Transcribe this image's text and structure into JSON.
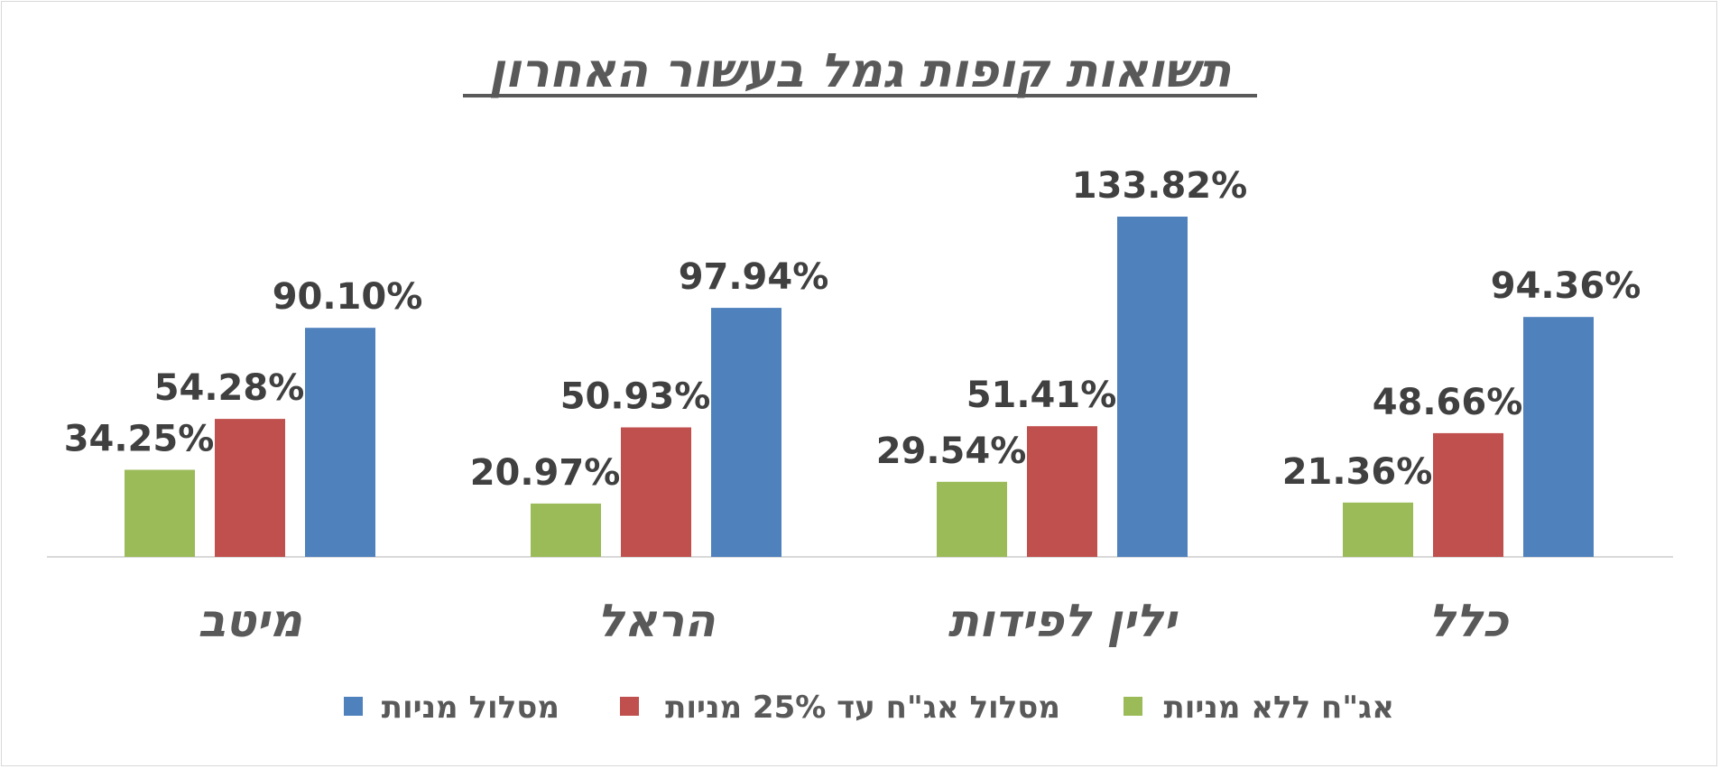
{
  "chart_data": {
    "type": "bar",
    "title": "תשואות קופות גמל בעשור האחרון",
    "categories": [
      "מיטב",
      "הראל",
      "ילין לפידות",
      "כלל"
    ],
    "series": [
      {
        "name": "אג\"ח ללא מניות",
        "color": "#9BBB59",
        "values": [
          34.25,
          20.97,
          29.54,
          21.36
        ],
        "labels": [
          "34.25%",
          "20.97%",
          "29.54%",
          "21.36%"
        ]
      },
      {
        "name": "מסלול אג\"ח עד 25% מניות",
        "color": "#C0504D",
        "values": [
          54.28,
          50.93,
          51.41,
          48.66
        ],
        "labels": [
          "54.28%",
          "50.93%",
          "51.41%",
          "48.66%"
        ]
      },
      {
        "name": "מסלול מניות",
        "color": "#4F81BD",
        "values": [
          90.1,
          97.94,
          133.82,
          94.36
        ],
        "labels": [
          "90.10%",
          "97.94%",
          "133.82%",
          "94.36%"
        ]
      }
    ],
    "ylim": [
      0,
      150
    ],
    "xlabel": "",
    "ylabel": "",
    "grid": false,
    "legend_position": "bottom",
    "axis_color": "#d9d9d9"
  }
}
